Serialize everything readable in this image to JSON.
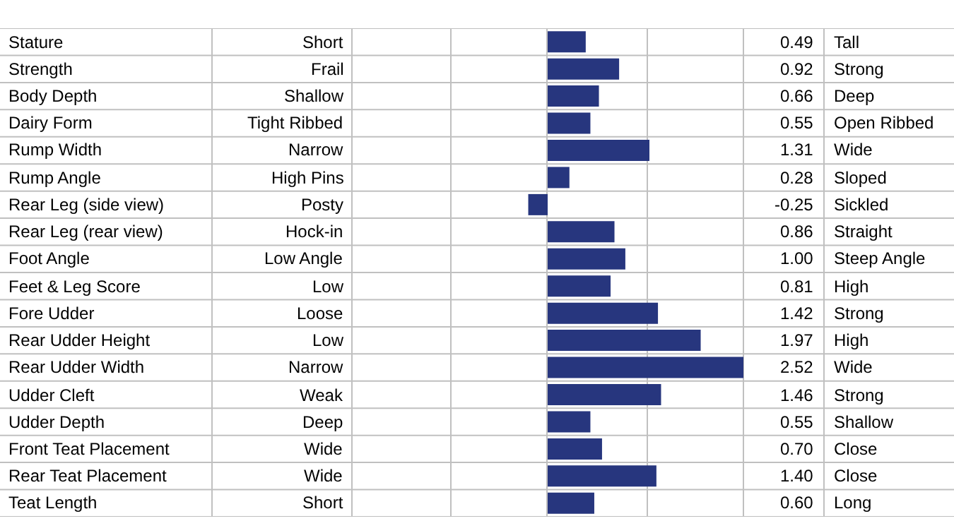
{
  "chart_data": {
    "type": "bar",
    "orientation": "horizontal",
    "categories": [
      "Stature",
      "Strength",
      "Body Depth",
      "Dairy Form",
      "Rump Width",
      "Rump Angle",
      "Rear Leg (side view)",
      "Rear Leg (rear view)",
      "Foot Angle",
      "Feet & Leg Score",
      "Fore Udder",
      "Rear Udder Height",
      "Rear Udder Width",
      "Udder Cleft",
      "Udder Depth",
      "Front Teat Placement",
      "Rear Teat Placement",
      "Teat Length"
    ],
    "values": [
      0.49,
      0.92,
      0.66,
      0.55,
      1.31,
      0.28,
      -0.25,
      0.86,
      1.0,
      0.81,
      1.42,
      1.97,
      2.52,
      1.46,
      0.55,
      0.7,
      1.4,
      0.6
    ],
    "value_labels": [
      "0.49",
      "0.92",
      "0.66",
      "0.55",
      "1.31",
      "0.28",
      "-0.25",
      "0.86",
      "1.00",
      "0.81",
      "1.42",
      "1.97",
      "2.52",
      "1.46",
      "0.55",
      "0.70",
      "1.40",
      "0.60"
    ],
    "annotations": [
      "Short",
      "Frail",
      "Shallow",
      "Tight Ribbed",
      "Narrow",
      "High Pins",
      "Posty",
      "Hock-in",
      "Low Angle",
      "Low",
      "Loose",
      "Low",
      "Narrow",
      "Weak",
      "Deep",
      "Wide",
      "Wide",
      "Short"
    ],
    "y2_categories": [
      "Tall",
      "Strong",
      "Deep",
      "Open Ribbed",
      "Wide",
      "Sloped",
      "Sickled",
      "Straight",
      "Steep Angle",
      "High",
      "Strong",
      "High",
      "Wide",
      "Strong",
      "Shallow",
      "Close",
      "Close",
      "Long"
    ],
    "color": "#27367e",
    "tick_labels": false
  }
}
